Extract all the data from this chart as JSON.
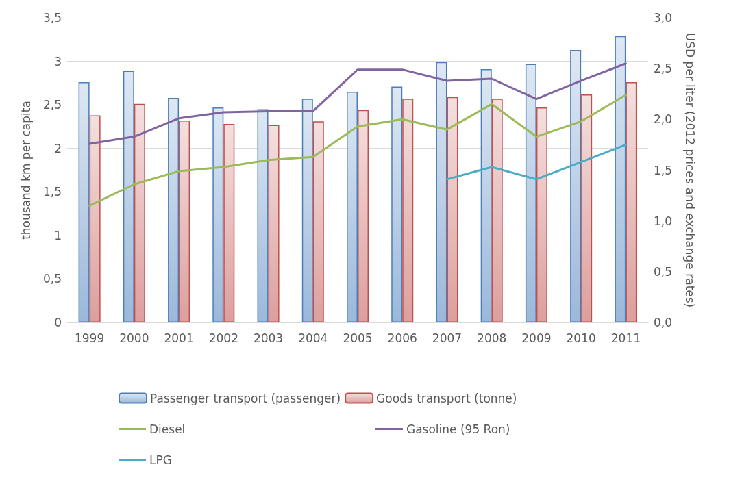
{
  "chart_data": {
    "type": "bar",
    "categories": [
      "1999",
      "2000",
      "2001",
      "2002",
      "2003",
      "2004",
      "2005",
      "2006",
      "2007",
      "2008",
      "2009",
      "2010",
      "2011"
    ],
    "ylabel": "thousand km per capita",
    "y2label": "USD per liter (2012 prices and exchange rates)",
    "series": [
      {
        "name": "Passenger transport (passenger)",
        "color": "#4a7ebb",
        "values": [
          2.76,
          2.89,
          2.58,
          2.47,
          2.45,
          2.57,
          2.65,
          2.71,
          2.99,
          2.91,
          2.97,
          3.13,
          3.29
        ]
      },
      {
        "name": "Goods transport (tonne)",
        "color": "#c0504d",
        "values": [
          2.38,
          2.51,
          2.32,
          2.28,
          2.27,
          2.31,
          2.44,
          2.57,
          2.59,
          2.57,
          2.47,
          2.62,
          2.76
        ]
      },
      {
        "name": "Diesel",
        "type": "line",
        "axis": "y2",
        "color": "#9bbb59",
        "values": [
          1.15,
          1.36,
          1.49,
          1.53,
          1.6,
          1.63,
          1.93,
          2.0,
          1.9,
          2.15,
          1.83,
          1.98,
          2.24
        ]
      },
      {
        "name": "Gasoline (95 Ron)",
        "type": "line",
        "axis": "y2",
        "color": "#8064a2",
        "values": [
          1.76,
          1.83,
          2.01,
          2.07,
          2.08,
          2.08,
          2.49,
          2.49,
          2.38,
          2.4,
          2.2,
          2.38,
          2.55
        ]
      },
      {
        "name": "LPG",
        "type": "line",
        "axis": "y2",
        "color": "#4bacc6",
        "values": [
          null,
          null,
          null,
          null,
          null,
          null,
          null,
          null,
          1.41,
          1.53,
          1.41,
          1.58,
          1.75
        ]
      }
    ],
    "ylim": [
      0,
      3.5
    ],
    "yticks": [
      0,
      {
        "value": 0.5,
        "label": "0,5"
      },
      1,
      {
        "value": 1.5,
        "label": "1,5"
      },
      2,
      {
        "value": 2.5,
        "label": "2,5"
      },
      3,
      {
        "value": 3.5,
        "label": "3,5"
      }
    ],
    "y2lim": [
      0,
      3
    ],
    "y2ticks": [
      {
        "value": 0,
        "label": "0,0"
      },
      {
        "value": 0.5,
        "label": "0,5"
      },
      {
        "value": 1,
        "label": "1,0"
      },
      {
        "value": 1.5,
        "label": "1,5"
      },
      {
        "value": 2,
        "label": "2,0"
      },
      {
        "value": 2.5,
        "label": "2,5"
      },
      {
        "value": 3,
        "label": "3,0"
      }
    ],
    "grid": "y",
    "legend": "bottom",
    "marker": "none",
    "line_style": "solid"
  }
}
